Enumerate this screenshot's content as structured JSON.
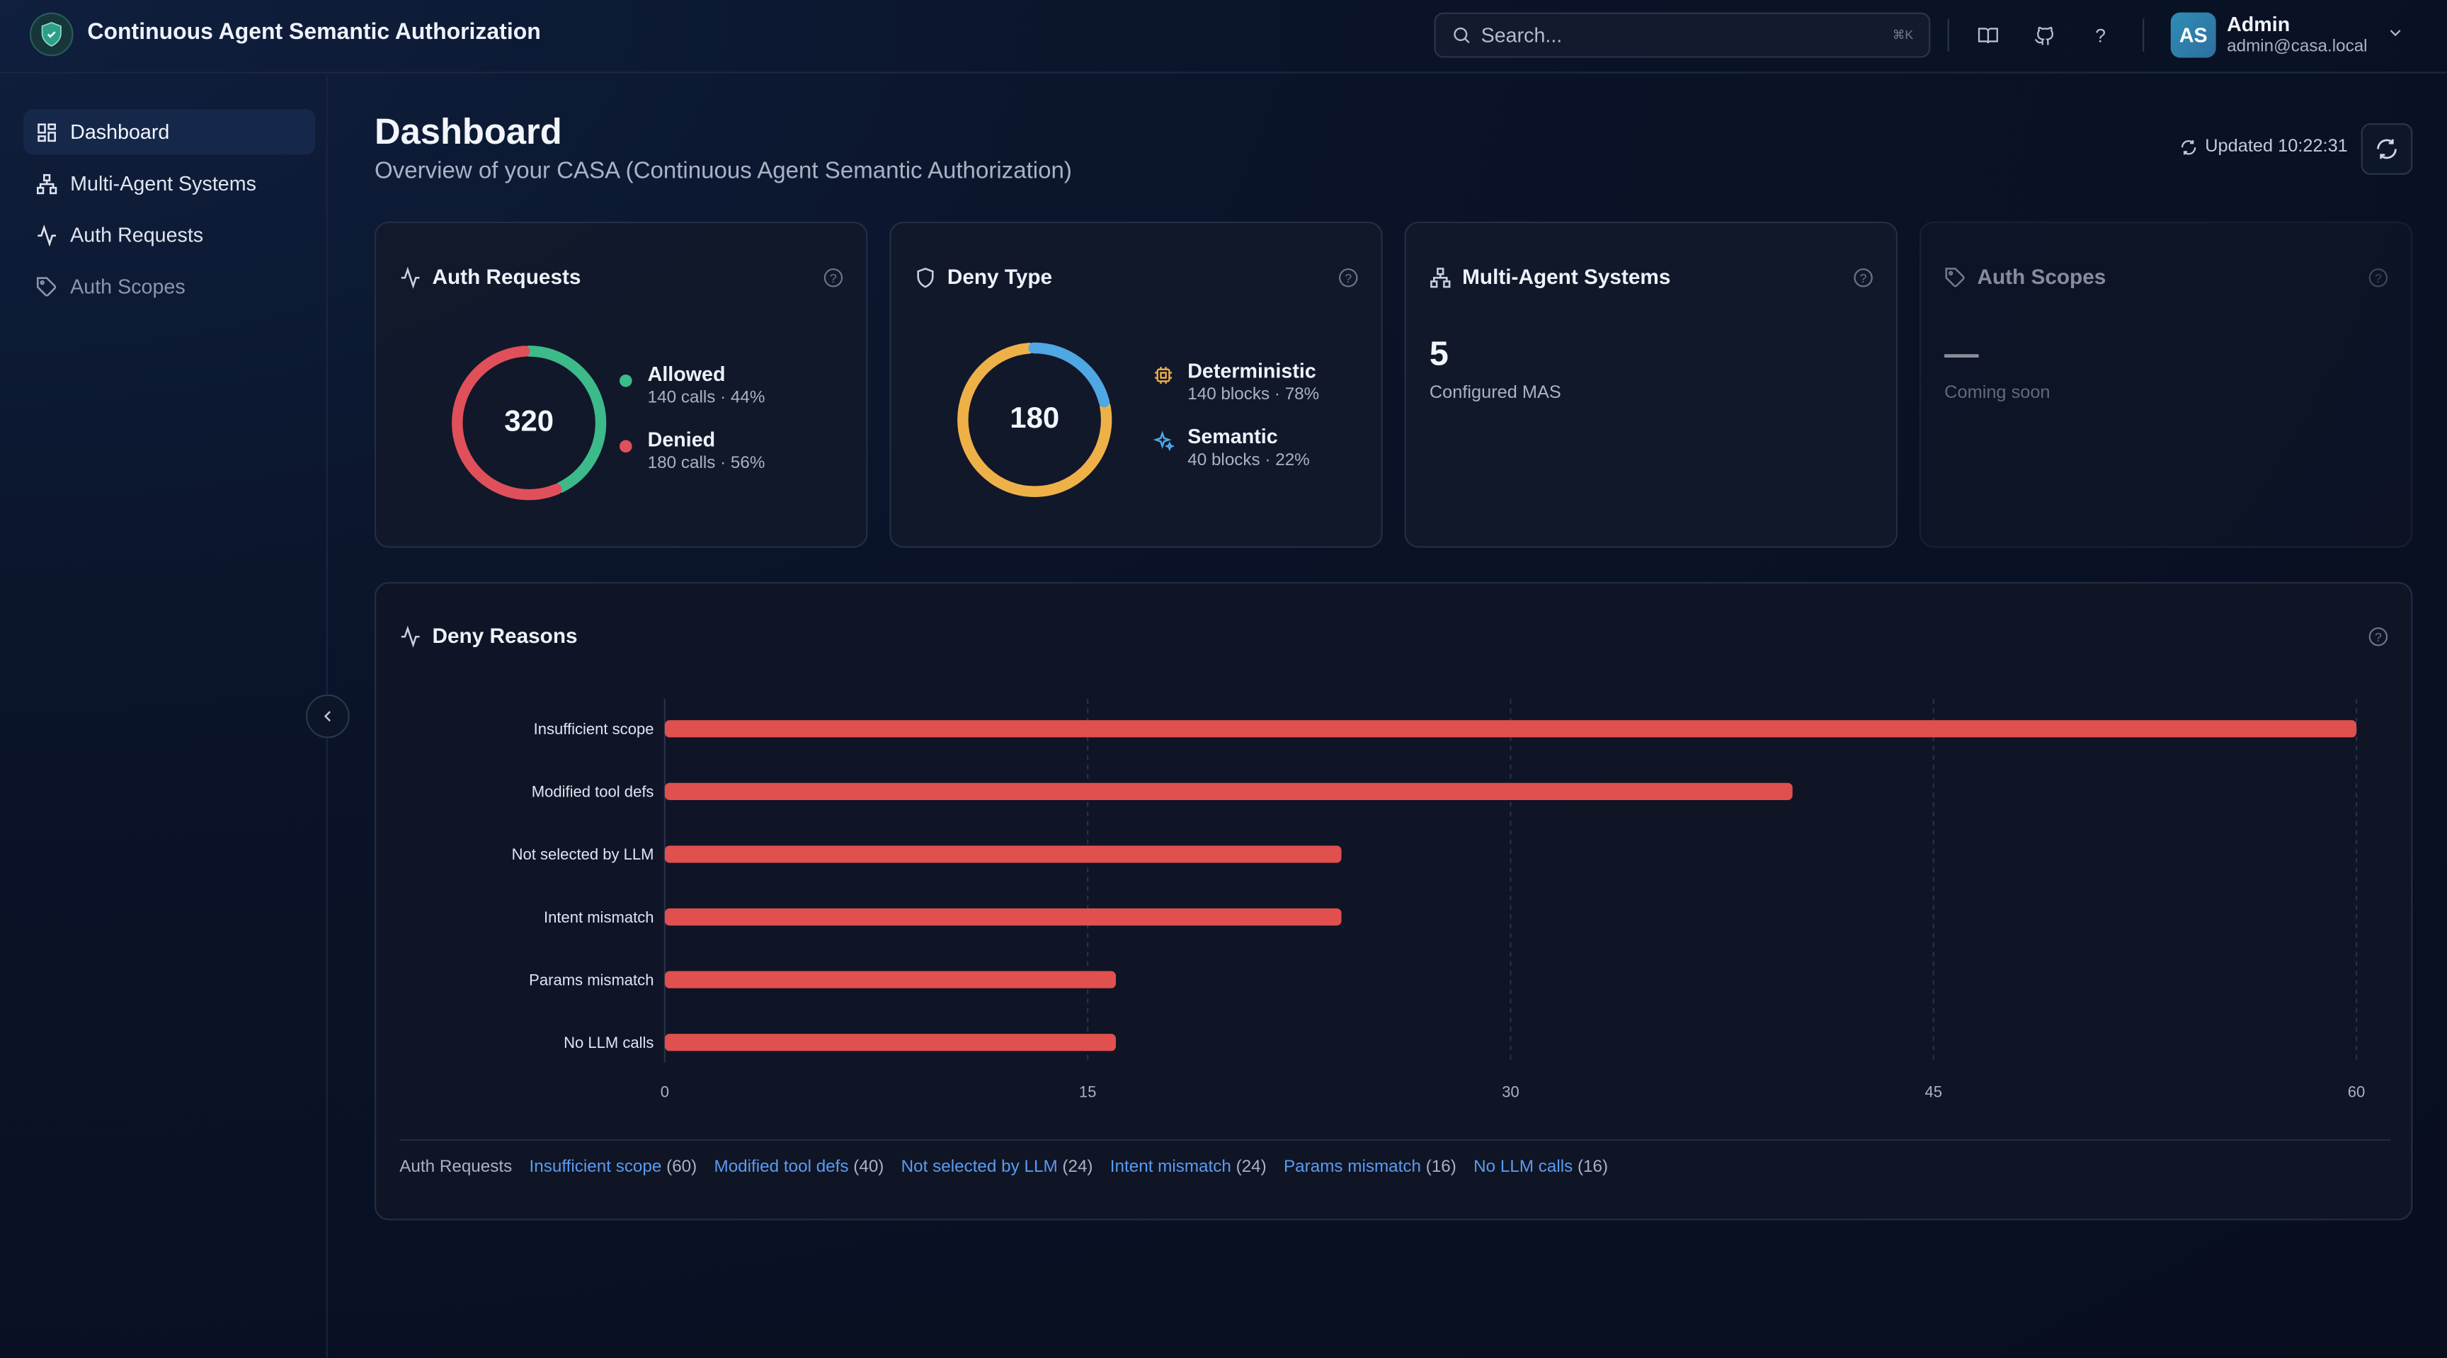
{
  "app": {
    "title": "Continuous Agent Semantic Authorization"
  },
  "search": {
    "placeholder": "Search...",
    "shortcut": "⌘K"
  },
  "header_icons": [
    "book-icon",
    "github-icon",
    "help-icon"
  ],
  "user": {
    "initials": "AS",
    "name": "Admin",
    "email": "admin@casa.local"
  },
  "sidebar": {
    "items": [
      {
        "label": "Dashboard",
        "icon": "dashboard-icon",
        "active": true
      },
      {
        "label": "Multi-Agent Systems",
        "icon": "network-icon",
        "active": false
      },
      {
        "label": "Auth Requests",
        "icon": "activity-icon",
        "active": false
      },
      {
        "label": "Auth Scopes",
        "icon": "tag-icon",
        "active": false,
        "muted": true
      }
    ]
  },
  "page": {
    "title": "Dashboard",
    "subtitle": "Overview of your CASA (Continuous Agent Semantic Authorization)",
    "updated": "Updated 10:22:31"
  },
  "cards": {
    "auth_requests": {
      "title": "Auth Requests",
      "total": "320",
      "items": [
        {
          "label": "Allowed",
          "sub": "140 calls · 44%",
          "value": 140,
          "color": "#3dba8a"
        },
        {
          "label": "Denied",
          "sub": "180 calls · 56%",
          "value": 180,
          "color": "#e0505a"
        }
      ]
    },
    "deny_type": {
      "title": "Deny Type",
      "total": "180",
      "items": [
        {
          "label": "Deterministic",
          "sub": "140 blocks · 78%",
          "value": 140,
          "color": "#eeb148"
        },
        {
          "label": "Semantic",
          "sub": "40 blocks · 22%",
          "value": 40,
          "color": "#4fa7e4"
        }
      ]
    },
    "mas": {
      "title": "Multi-Agent Systems",
      "value": "5",
      "sub": "Configured MAS"
    },
    "auth_scopes": {
      "title": "Auth Scopes",
      "value": "—",
      "sub": "Coming soon"
    }
  },
  "deny_reasons": {
    "title": "Deny Reasons",
    "footer_label": "Auth Requests"
  },
  "chart_data": {
    "type": "bar",
    "orientation": "horizontal",
    "categories": [
      "Insufficient scope",
      "Modified tool defs",
      "Not selected by LLM",
      "Intent mismatch",
      "Params mismatch",
      "No LLM calls"
    ],
    "values": [
      60,
      40,
      24,
      24,
      16,
      16
    ],
    "xlim": [
      0,
      60
    ],
    "xticks": [
      0,
      15,
      30,
      45,
      60
    ],
    "grid": true,
    "bar_color": "#e0504e"
  }
}
